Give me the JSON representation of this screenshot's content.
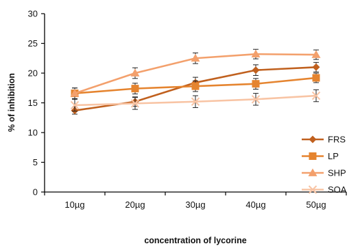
{
  "chart_data": {
    "type": "line",
    "xlabel": "concentration of lycorine",
    "ylabel": "% of inhibition",
    "categories": [
      "10µg",
      "20µg",
      "30µg",
      "40µg",
      "50µg"
    ],
    "ylim": [
      0,
      30
    ],
    "yticks": [
      "0",
      "5",
      "10",
      "15",
      "20",
      "25",
      "30"
    ],
    "grid": false,
    "legend_position": "bottom-right",
    "error_bars": true,
    "series": [
      {
        "name": "FRS",
        "marker": "diamond",
        "color": "#c0601e",
        "values": [
          13.7,
          15.2,
          18.4,
          20.5,
          21.0
        ],
        "errors": [
          0.6,
          0.8,
          0.9,
          0.9,
          0.8
        ]
      },
      {
        "name": "LP",
        "marker": "square",
        "color": "#e5842f",
        "values": [
          16.6,
          17.4,
          17.8,
          18.2,
          19.2
        ],
        "errors": [
          0.9,
          0.9,
          0.9,
          0.9,
          0.8
        ]
      },
      {
        "name": "SHP",
        "marker": "triangle",
        "color": "#f3a06c",
        "values": [
          16.6,
          20.0,
          22.5,
          23.2,
          23.1
        ],
        "errors": [
          0.9,
          0.9,
          0.9,
          0.8,
          0.8
        ]
      },
      {
        "name": "SOA",
        "marker": "x",
        "color": "#f8c4a4",
        "values": [
          14.6,
          14.9,
          15.2,
          15.6,
          16.2
        ],
        "errors": [
          1.0,
          1.0,
          1.0,
          1.0,
          1.0
        ]
      }
    ]
  }
}
